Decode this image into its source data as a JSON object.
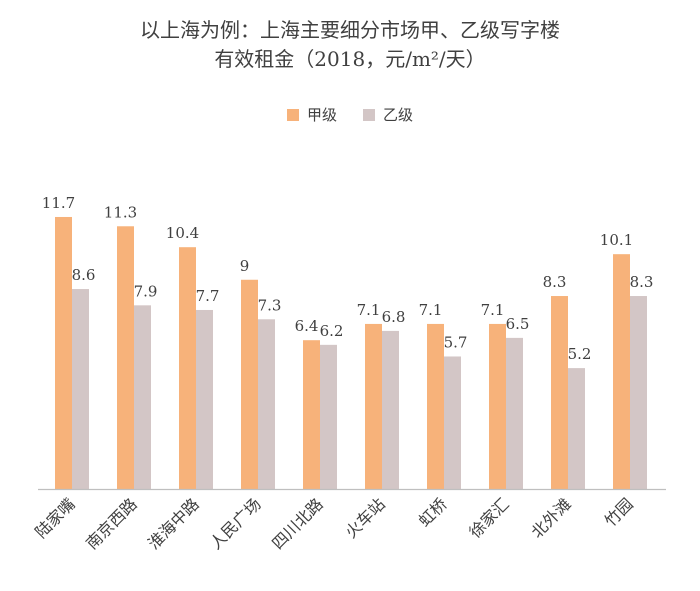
{
  "chart_data": {
    "type": "bar",
    "title": "以上海为例：上海主要细分市场甲、乙级写字楼",
    "subtitle": "有效租金（2018，元/m²/天）",
    "xlabel": "",
    "ylabel": "",
    "ylim": [
      0,
      13
    ],
    "grid": false,
    "legend_position": "top",
    "categories": [
      "陆家嘴",
      "南京西路",
      "淮海中路",
      "人民广场",
      "四川北路",
      "火车站",
      "虹桥",
      "徐家汇",
      "北外滩",
      "竹园"
    ],
    "series": [
      {
        "name": "甲级",
        "color": "#F7B27A",
        "values": [
          11.7,
          11.3,
          10.4,
          9,
          6.4,
          7.1,
          7.1,
          7.1,
          8.3,
          10.1
        ],
        "labels": [
          "11.7",
          "11.3",
          "10.4",
          "9",
          "6.4",
          "7.1",
          "7.1",
          "7.1",
          "8.3",
          "10.1"
        ]
      },
      {
        "name": "乙级",
        "color": "#D3C6C6",
        "values": [
          8.6,
          7.9,
          7.7,
          7.3,
          6.2,
          6.8,
          5.7,
          6.5,
          5.2,
          8.3
        ],
        "labels": [
          "8.6",
          "7.9",
          "7.7",
          "7.3",
          "6.2",
          "6.8",
          "5.7",
          "6.5",
          "5.2",
          "8.3"
        ]
      }
    ],
    "axis_color": "#BFBFBF"
  }
}
